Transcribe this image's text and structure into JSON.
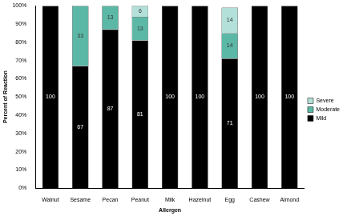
{
  "chart_data": {
    "type": "bar",
    "stacked": true,
    "data_labels": true,
    "grid": false,
    "legend": "right",
    "x_label": "Allergen",
    "y_label": "Percent of Reaction",
    "categories": [
      "Walnut",
      "Sesame",
      "Pecan",
      "Peanut",
      "Milk",
      "Hazelnut",
      "Egg",
      "Cashew",
      "Almond"
    ],
    "series": [
      {
        "name": "Mild",
        "color": "#000000",
        "values": [
          100,
          67,
          87,
          81,
          100,
          100,
          71,
          100,
          100
        ]
      },
      {
        "name": "Moderate",
        "color": "#5cb8a6",
        "values": [
          0,
          33,
          13,
          13,
          0,
          0,
          14,
          0,
          0
        ]
      },
      {
        "name": "Severe",
        "color": "#b3e0d8",
        "values": [
          0,
          0,
          0,
          6,
          0,
          0,
          14,
          0,
          0
        ]
      }
    ],
    "ylim": [
      0,
      100
    ],
    "yticks": [
      {
        "value": 0,
        "label": "0%"
      },
      {
        "value": 10,
        "label": "10%"
      },
      {
        "value": 20,
        "label": "20%"
      },
      {
        "value": 30,
        "label": "30%"
      },
      {
        "value": 40,
        "label": "40%"
      },
      {
        "value": 50,
        "label": "50%"
      },
      {
        "value": 60,
        "label": "60%"
      },
      {
        "value": 70,
        "label": "70%"
      },
      {
        "value": 80,
        "label": "80%"
      },
      {
        "value": 90,
        "label": "90%"
      },
      {
        "value": 100,
        "label": "100%"
      }
    ]
  }
}
